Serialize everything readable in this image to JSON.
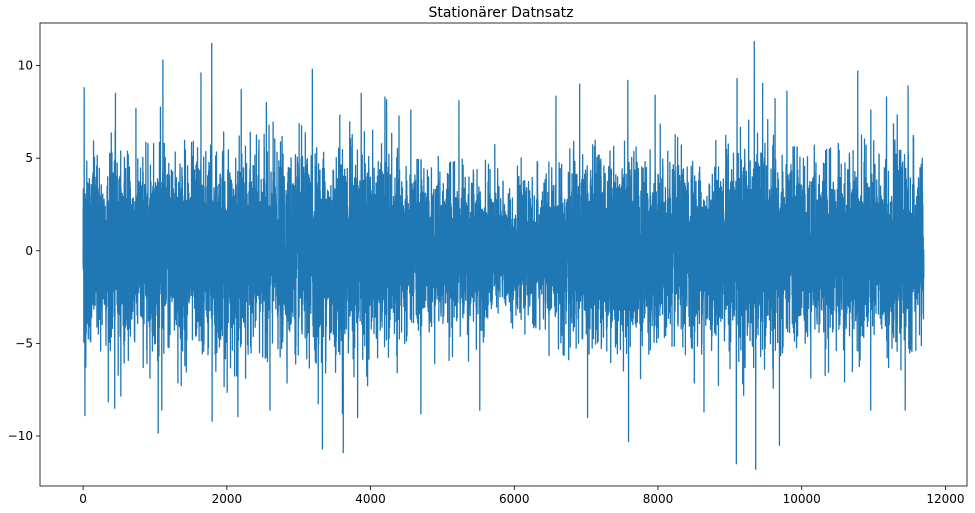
{
  "chart_data": {
    "type": "line",
    "title": "Stationärer Datnsatz",
    "xlabel": "",
    "ylabel": "",
    "xlim": [
      -600,
      12300
    ],
    "ylim": [
      -12.7,
      12.3
    ],
    "xticks": [
      0,
      2000,
      4000,
      6000,
      8000,
      10000,
      12000
    ],
    "yticks": [
      -10,
      -5,
      0,
      5,
      10
    ],
    "grid": false,
    "legend": null,
    "color": "#1f77b4",
    "n_points": 11700,
    "series": [
      {
        "x_start": 0,
        "x_end": 11699,
        "mean": 0,
        "amplitude_profile": [
          [
            0,
            2.4
          ],
          [
            600,
            2.3
          ],
          [
            1200,
            2.5
          ],
          [
            1800,
            2.5
          ],
          [
            2400,
            2.3
          ],
          [
            3000,
            2.4
          ],
          [
            3600,
            2.6
          ],
          [
            4200,
            2.3
          ],
          [
            4800,
            2.0
          ],
          [
            5400,
            1.9
          ],
          [
            5800,
            1.7
          ],
          [
            6000,
            1.5
          ],
          [
            6400,
            1.8
          ],
          [
            7000,
            2.3
          ],
          [
            7600,
            2.4
          ],
          [
            8200,
            2.2
          ],
          [
            8800,
            2.1
          ],
          [
            9200,
            2.6
          ],
          [
            9600,
            2.5
          ],
          [
            10200,
            2.2
          ],
          [
            10800,
            2.3
          ],
          [
            11400,
            2.3
          ],
          [
            11699,
            2.2
          ]
        ],
        "extremes": [
          {
            "x": 15,
            "y": 8.8
          },
          {
            "x": 25,
            "y": -8.9
          },
          {
            "x": 450,
            "y": 8.5
          },
          {
            "x": 440,
            "y": -8.5
          },
          {
            "x": 1110,
            "y": 10.3
          },
          {
            "x": 1095,
            "y": -8.6
          },
          {
            "x": 1640,
            "y": 9.6
          },
          {
            "x": 1790,
            "y": 11.2
          },
          {
            "x": 1795,
            "y": -9.2
          },
          {
            "x": 2200,
            "y": 8.7
          },
          {
            "x": 2550,
            "y": 8.0
          },
          {
            "x": 2600,
            "y": -8.6
          },
          {
            "x": 3190,
            "y": 9.8
          },
          {
            "x": 3330,
            "y": -10.7
          },
          {
            "x": 3620,
            "y": -10.9
          },
          {
            "x": 3870,
            "y": 8.5
          },
          {
            "x": 3820,
            "y": -9.0
          },
          {
            "x": 4200,
            "y": 8.3
          },
          {
            "x": 4700,
            "y": -8.8
          },
          {
            "x": 5230,
            "y": 8.1
          },
          {
            "x": 5520,
            "y": -8.6
          },
          {
            "x": 6910,
            "y": 9.0
          },
          {
            "x": 7020,
            "y": -9.0
          },
          {
            "x": 7580,
            "y": 9.2
          },
          {
            "x": 7590,
            "y": -10.3
          },
          {
            "x": 7960,
            "y": 8.4
          },
          {
            "x": 8640,
            "y": -8.7
          },
          {
            "x": 9100,
            "y": 9.3
          },
          {
            "x": 9090,
            "y": -11.5
          },
          {
            "x": 9340,
            "y": 11.3
          },
          {
            "x": 9360,
            "y": -11.8
          },
          {
            "x": 9690,
            "y": -10.5
          },
          {
            "x": 10780,
            "y": 9.7
          },
          {
            "x": 10960,
            "y": -8.6
          },
          {
            "x": 11180,
            "y": 8.3
          },
          {
            "x": 11440,
            "y": -8.6
          },
          {
            "x": 11480,
            "y": 8.9
          }
        ]
      }
    ]
  }
}
